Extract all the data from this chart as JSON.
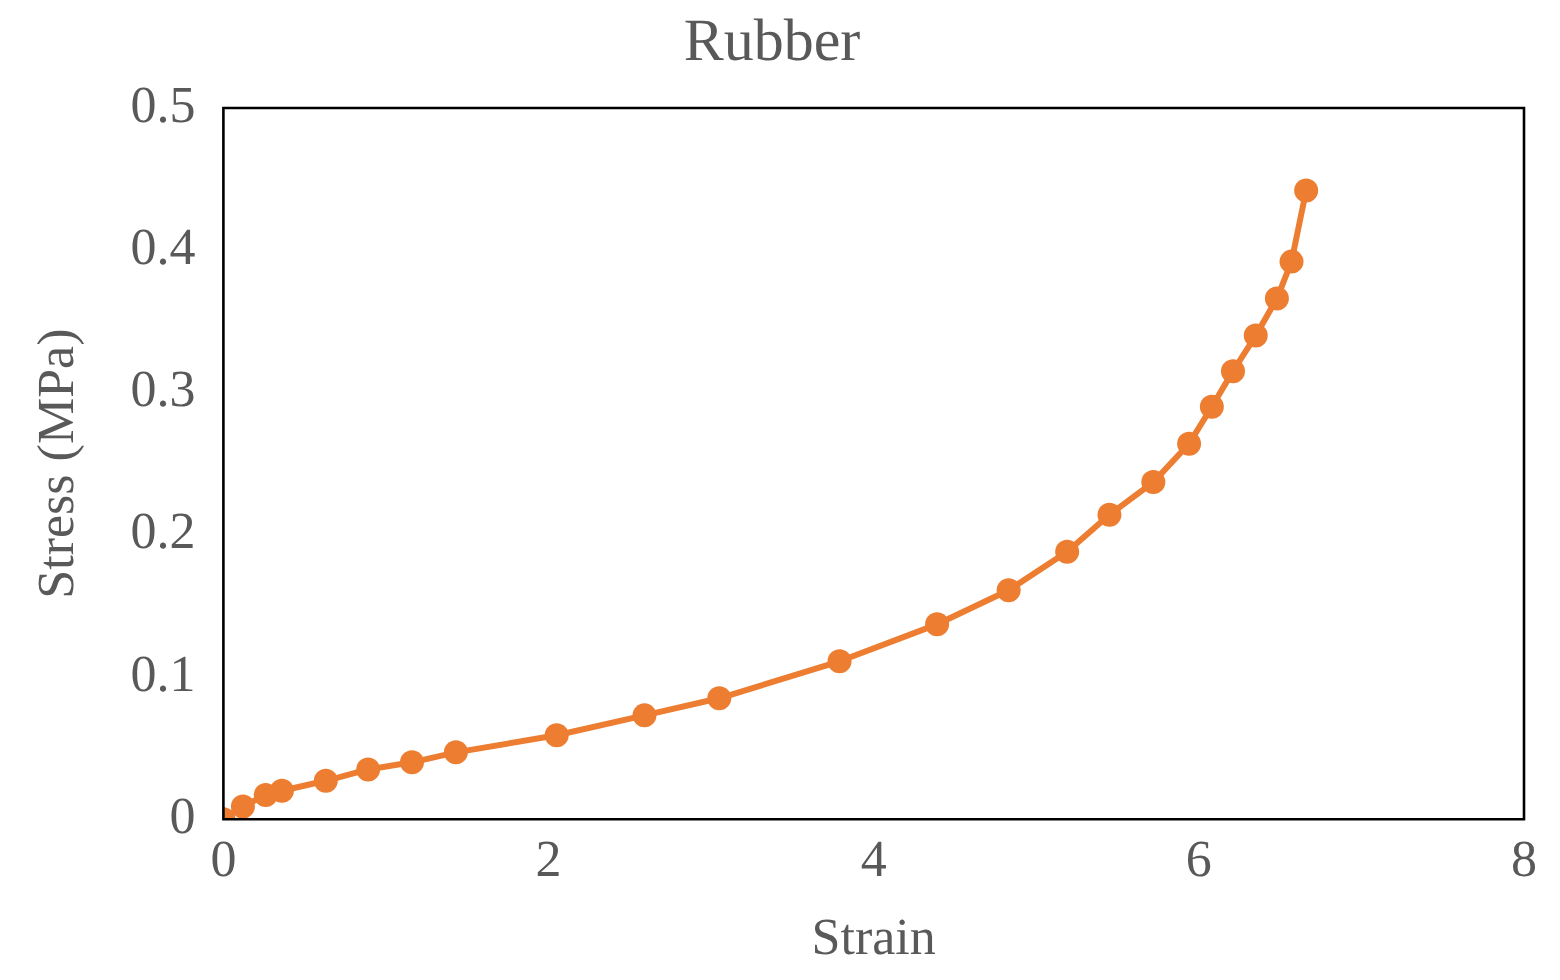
{
  "chart_data": {
    "type": "line",
    "title": "Rubber",
    "xlabel": "Strain",
    "ylabel": "Stress (MPa)",
    "x": [
      0,
      0.12,
      0.26,
      0.36,
      0.63,
      0.89,
      1.16,
      1.43,
      2.05,
      2.59,
      3.05,
      3.79,
      4.39,
      4.83,
      5.19,
      5.45,
      5.72,
      5.94,
      6.08,
      6.21,
      6.35,
      6.48,
      6.57,
      6.66
    ],
    "series": [
      {
        "color": "#ed7d31",
        "values": [
          0,
          0.009,
          0.017,
          0.02,
          0.027,
          0.035,
          0.04,
          0.047,
          0.059,
          0.073,
          0.085,
          0.111,
          0.137,
          0.161,
          0.188,
          0.214,
          0.237,
          0.264,
          0.29,
          0.315,
          0.34,
          0.366,
          0.392,
          0.442
        ]
      }
    ],
    "xlim": [
      0,
      8
    ],
    "xticks": [
      0,
      2,
      4,
      6,
      8
    ],
    "ylim": [
      0,
      0.5
    ],
    "yticks": [
      0,
      0.1,
      0.2,
      0.3,
      0.4,
      0.5
    ],
    "grid": false,
    "legend": false,
    "marker": "circle",
    "line_style": "solid"
  }
}
